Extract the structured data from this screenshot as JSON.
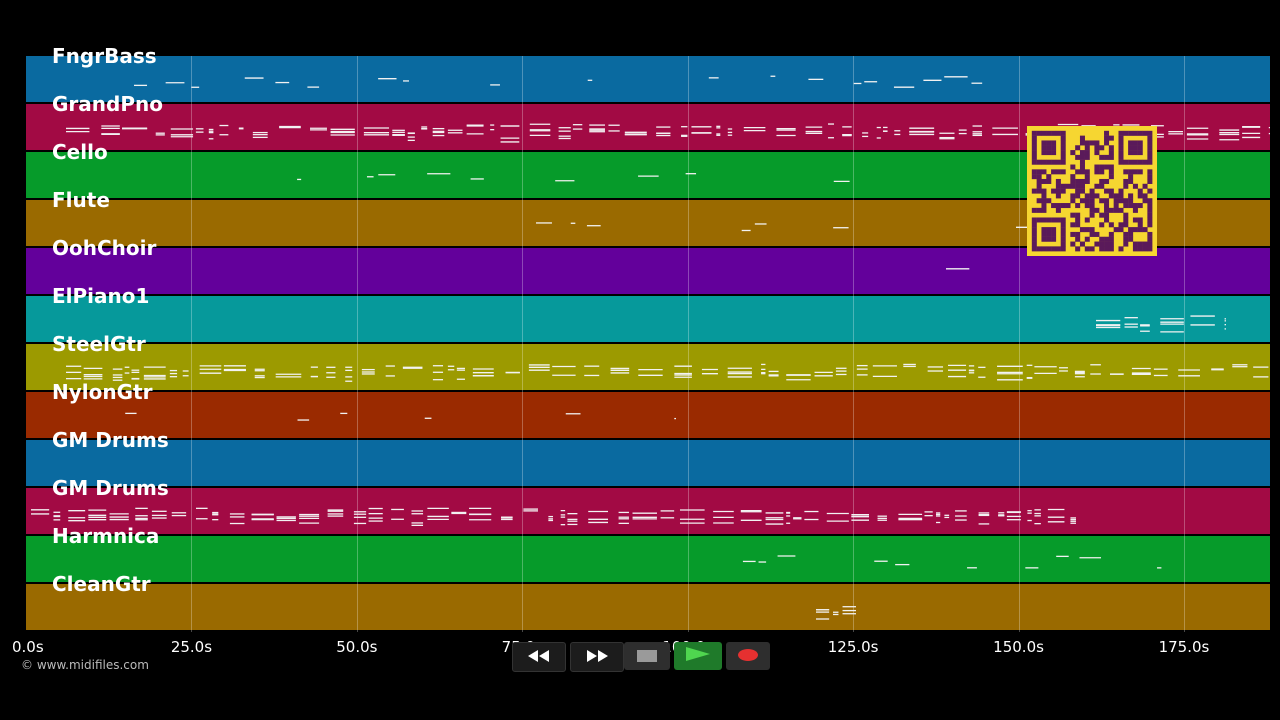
{
  "tracks": [
    {
      "name": "FngrBass",
      "color": "#0a6aa0"
    },
    {
      "name": "GrandPno",
      "color": "#a20a44"
    },
    {
      "name": "Cello",
      "color": "#069b2a"
    },
    {
      "name": "Flute",
      "color": "#9a6a00"
    },
    {
      "name": "OohChoir",
      "color": "#63009b"
    },
    {
      "name": "ElPiano1",
      "color": "#06999b"
    },
    {
      "name": "SteelGtr",
      "color": "#9c9a00"
    },
    {
      "name": "NylonGtr",
      "color": "#9a2a00"
    },
    {
      "name": "GM Drums",
      "color": "#0a6aa0"
    },
    {
      "name": "GM Drums",
      "color": "#a20a44"
    },
    {
      "name": "Harmnica",
      "color": "#069b2a"
    },
    {
      "name": "CleanGtr",
      "color": "#9a6a00"
    }
  ],
  "timeline": {
    "ticks": [
      "0.0s",
      "25.0s",
      "50.0s",
      "75.0s",
      "100.0s",
      "125.0s",
      "150.0s",
      "175.0s"
    ],
    "tick_values": [
      0,
      25,
      50,
      75,
      100,
      125,
      150,
      175
    ],
    "range_seconds": [
      0,
      188
    ]
  },
  "copyright": "© www.midifiles.com",
  "transport": {
    "buttons": [
      {
        "name": "rewind-button",
        "icon": "rewind-icon"
      },
      {
        "name": "fast-forward-button",
        "icon": "fast-forward-icon"
      },
      {
        "name": "stop-button",
        "icon": "stop-icon"
      },
      {
        "name": "play-button",
        "icon": "play-icon"
      },
      {
        "name": "record-button",
        "icon": "record-icon"
      }
    ]
  },
  "qr_code": {
    "icon": "qr-code-icon",
    "color": "#f6d631",
    "module_color": "#5a1a5a"
  }
}
